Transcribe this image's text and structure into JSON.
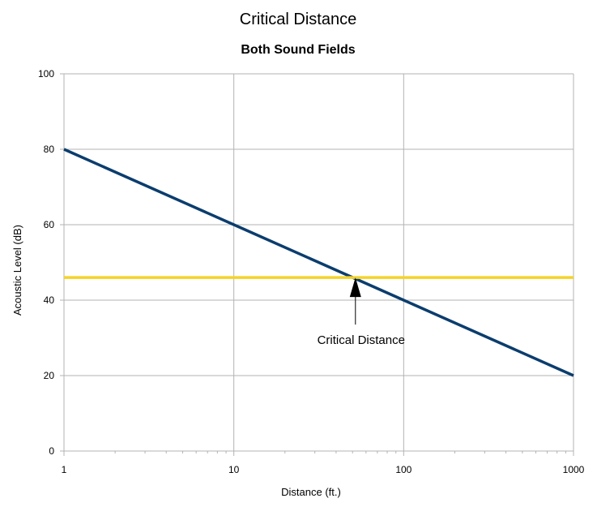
{
  "chart_data": {
    "type": "line",
    "title": "Critical Distance",
    "subtitle": "Both Sound Fields",
    "xlabel": "Distance (ft.)",
    "ylabel": "Acoustic Level (dB)",
    "x_scale": "log",
    "xlim": [
      1,
      1000
    ],
    "ylim": [
      0,
      100
    ],
    "x_ticks": [
      "1",
      "10",
      "100",
      "1000"
    ],
    "y_ticks": [
      "0",
      "20",
      "40",
      "60",
      "80",
      "100"
    ],
    "grid": true,
    "legend": "none",
    "series": [
      {
        "color": "#0b3d6e",
        "x": [
          1,
          10,
          100,
          1000
        ],
        "y": [
          80,
          60,
          40,
          20
        ]
      },
      {
        "color": "#f5d327",
        "x": [
          1,
          1000
        ],
        "y": [
          46,
          46
        ]
      }
    ],
    "annotation": {
      "text": "Critical Distance",
      "x": 52,
      "y": 46
    }
  }
}
